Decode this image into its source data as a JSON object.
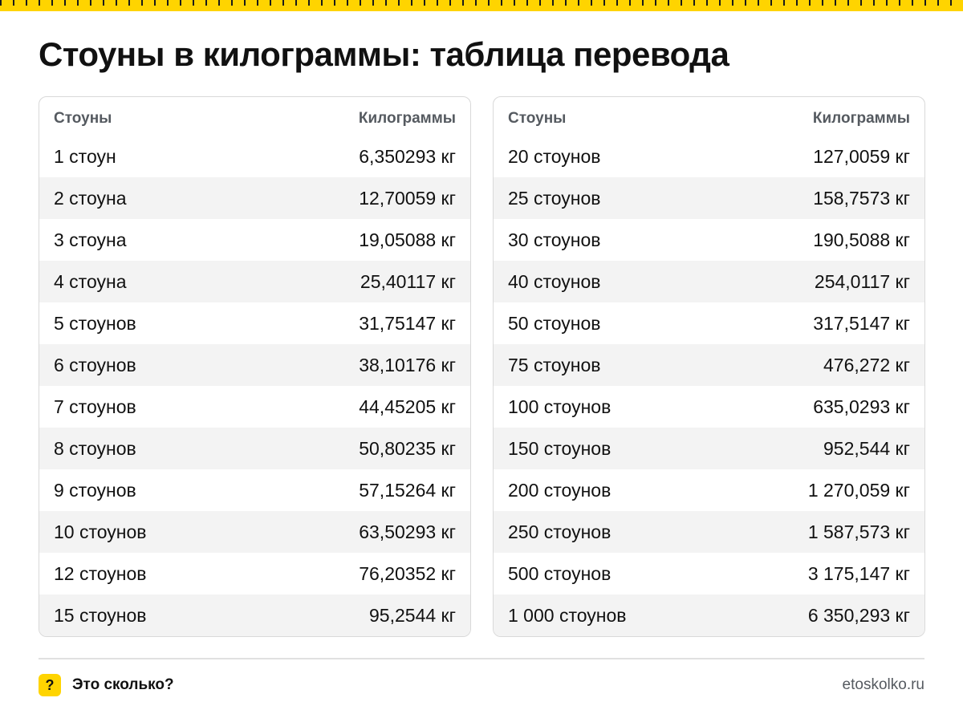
{
  "title": "Стоуны в килограммы: таблица перевода",
  "headers": {
    "stones": "Стоуны",
    "kilograms": "Килограммы"
  },
  "left_table": [
    {
      "stones": "1 стоун",
      "kilograms": "6,350293 кг"
    },
    {
      "stones": "2 стоуна",
      "kilograms": "12,70059 кг"
    },
    {
      "stones": "3 стоуна",
      "kilograms": "19,05088 кг"
    },
    {
      "stones": "4 стоуна",
      "kilograms": "25,40117 кг"
    },
    {
      "stones": "5 стоунов",
      "kilograms": "31,75147 кг"
    },
    {
      "stones": "6 стоунов",
      "kilograms": "38,10176 кг"
    },
    {
      "stones": "7 стоунов",
      "kilograms": "44,45205 кг"
    },
    {
      "stones": "8 стоунов",
      "kilograms": "50,80235 кг"
    },
    {
      "stones": "9 стоунов",
      "kilograms": "57,15264 кг"
    },
    {
      "stones": "10 стоунов",
      "kilograms": "63,50293 кг"
    },
    {
      "stones": "12 стоунов",
      "kilograms": "76,20352 кг"
    },
    {
      "stones": "15 стоунов",
      "kilograms": "95,2544 кг"
    }
  ],
  "right_table": [
    {
      "stones": "20 стоунов",
      "kilograms": "127,0059 кг"
    },
    {
      "stones": "25 стоунов",
      "kilograms": "158,7573 кг"
    },
    {
      "stones": "30 стоунов",
      "kilograms": "190,5088 кг"
    },
    {
      "stones": "40 стоунов",
      "kilograms": "254,0117 кг"
    },
    {
      "stones": "50 стоунов",
      "kilograms": "317,5147 кг"
    },
    {
      "stones": "75 стоунов",
      "kilograms": "476,272 кг"
    },
    {
      "stones": "100 стоунов",
      "kilograms": "635,0293 кг"
    },
    {
      "stones": "150 стоунов",
      "kilograms": "952,544 кг"
    },
    {
      "stones": "200 стоунов",
      "kilograms": "1 270,059 кг"
    },
    {
      "stones": "250 стоунов",
      "kilograms": "1 587,573 кг"
    },
    {
      "stones": "500 стоунов",
      "kilograms": "3 175,147 кг"
    },
    {
      "stones": "1 000 стоунов",
      "kilograms": "6 350,293 кг"
    }
  ],
  "footer": {
    "badge": "?",
    "brand_name": "Это сколько?",
    "site": "etoskolko.ru"
  },
  "colors": {
    "accent": "#ffd400",
    "text": "#111111",
    "muted": "#555a60",
    "stripe": "#f3f3f3"
  }
}
